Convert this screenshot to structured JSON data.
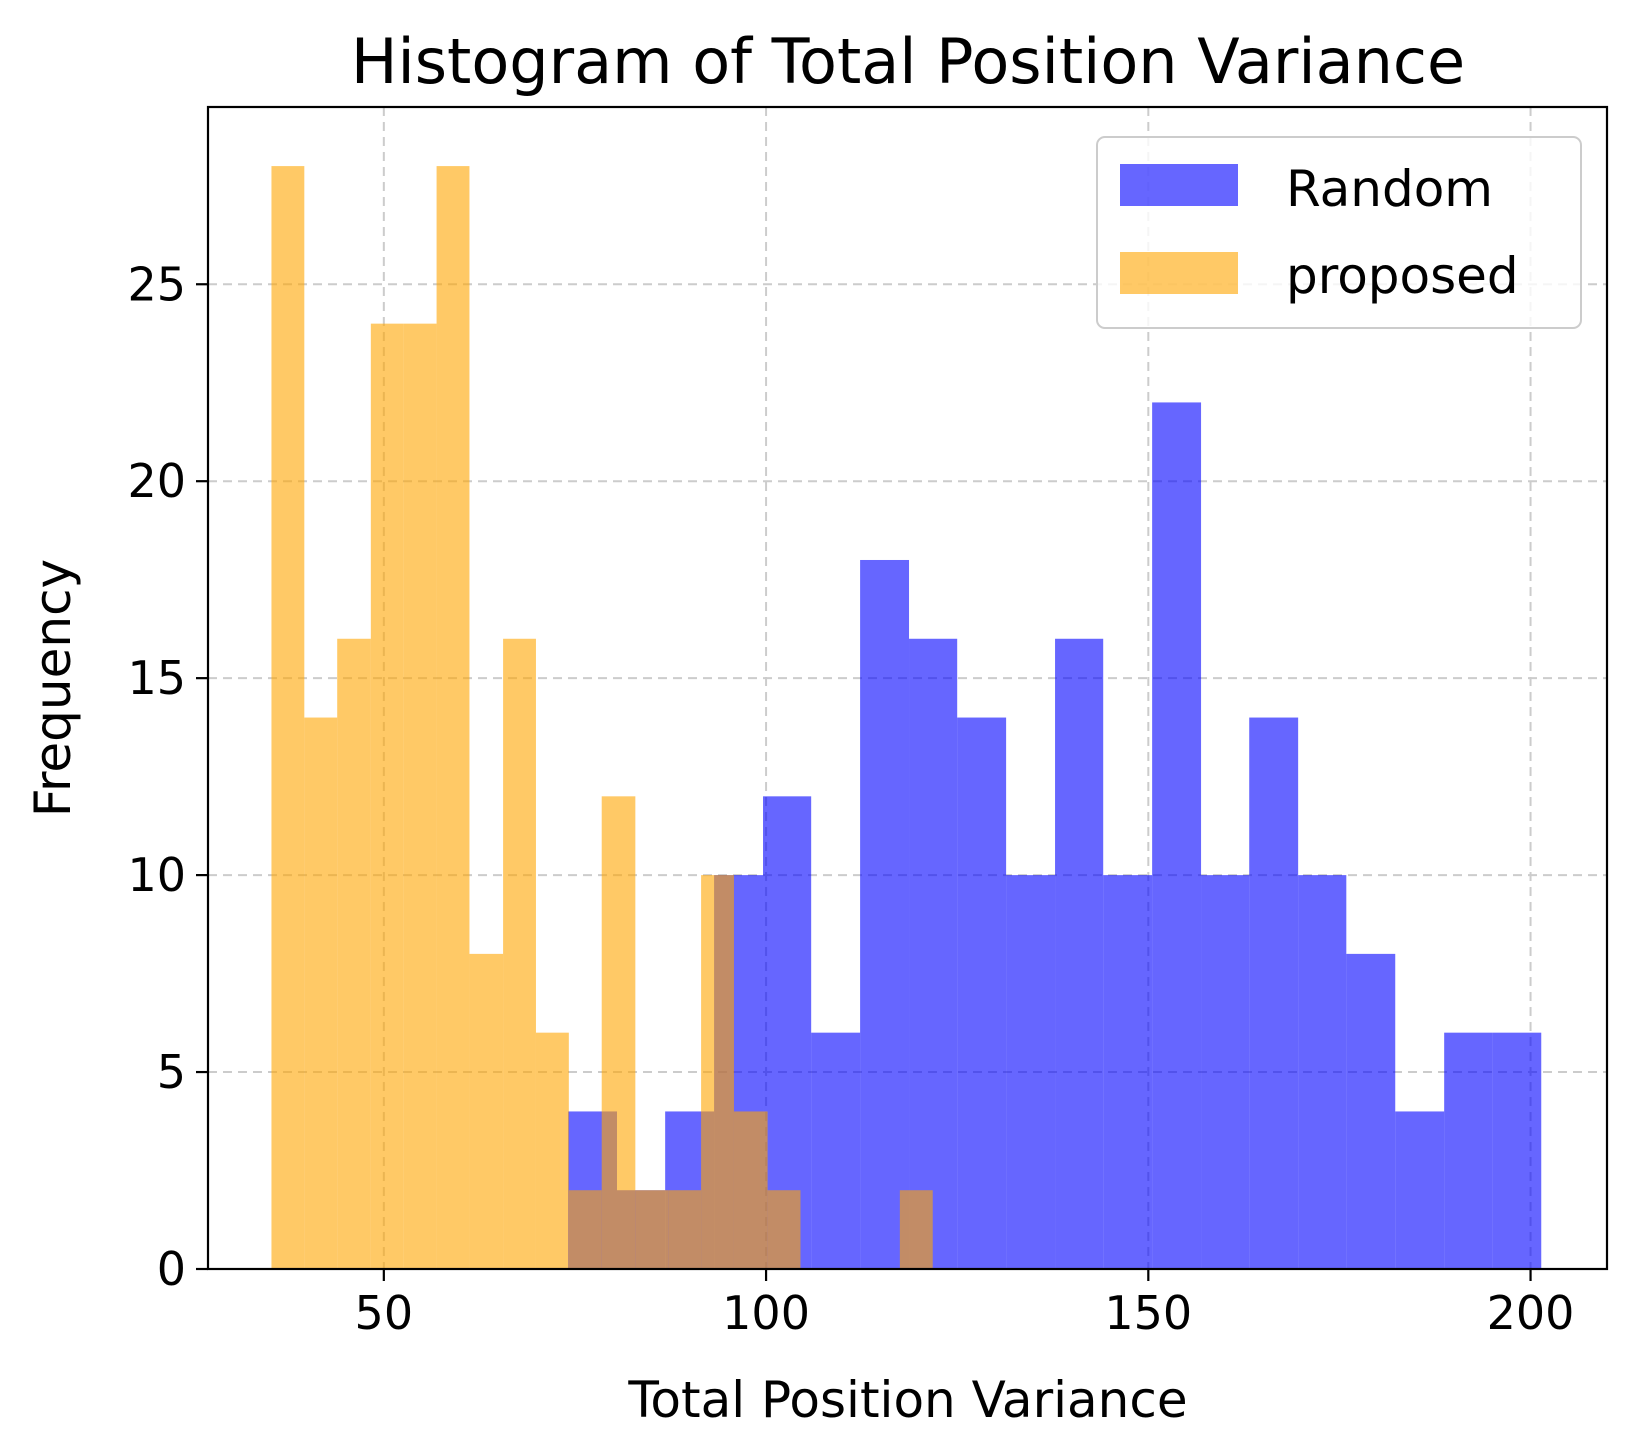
{
  "chart_data": {
    "type": "bar",
    "title": "Histogram of Total Position Variance",
    "xlabel": "Total Position Variance",
    "ylabel": "Frequency",
    "xlim": [
      27,
      210
    ],
    "ylim": [
      0,
      29.5
    ],
    "xticks": [
      50,
      100,
      150,
      200
    ],
    "yticks": [
      0,
      5,
      10,
      15,
      20,
      25
    ],
    "grid": true,
    "legend_position": "top-right",
    "series": [
      {
        "name": "Random",
        "color": "#0000ff",
        "opacity": 0.6,
        "bins": [
          {
            "x0": 74.1,
            "x1": 80.5,
            "value": 4
          },
          {
            "x0": 80.5,
            "x1": 86.8,
            "value": 2
          },
          {
            "x0": 86.8,
            "x1": 93.2,
            "value": 4
          },
          {
            "x0": 93.2,
            "x1": 99.6,
            "value": 10
          },
          {
            "x0": 99.6,
            "x1": 105.9,
            "value": 12
          },
          {
            "x0": 105.9,
            "x1": 112.3,
            "value": 6
          },
          {
            "x0": 112.3,
            "x1": 118.7,
            "value": 18
          },
          {
            "x0": 118.7,
            "x1": 125.0,
            "value": 16
          },
          {
            "x0": 125.0,
            "x1": 131.4,
            "value": 14
          },
          {
            "x0": 131.4,
            "x1": 137.8,
            "value": 10
          },
          {
            "x0": 137.8,
            "x1": 144.1,
            "value": 16
          },
          {
            "x0": 144.1,
            "x1": 150.5,
            "value": 10
          },
          {
            "x0": 150.5,
            "x1": 156.9,
            "value": 22
          },
          {
            "x0": 156.9,
            "x1": 163.2,
            "value": 10
          },
          {
            "x0": 163.2,
            "x1": 169.6,
            "value": 14
          },
          {
            "x0": 169.6,
            "x1": 175.9,
            "value": 10
          },
          {
            "x0": 175.9,
            "x1": 182.3,
            "value": 8
          },
          {
            "x0": 182.3,
            "x1": 188.7,
            "value": 4
          },
          {
            "x0": 188.7,
            "x1": 195.0,
            "value": 6
          },
          {
            "x0": 195.0,
            "x1": 201.4,
            "value": 6
          }
        ]
      },
      {
        "name": "proposed",
        "color": "#ffa500",
        "opacity": 0.6,
        "bins": [
          {
            "x0": 35.3,
            "x1": 39.6,
            "value": 28
          },
          {
            "x0": 39.6,
            "x1": 43.9,
            "value": 14
          },
          {
            "x0": 43.9,
            "x1": 48.3,
            "value": 16
          },
          {
            "x0": 48.3,
            "x1": 52.6,
            "value": 24
          },
          {
            "x0": 52.6,
            "x1": 56.9,
            "value": 24
          },
          {
            "x0": 56.9,
            "x1": 61.2,
            "value": 28
          },
          {
            "x0": 61.2,
            "x1": 65.6,
            "value": 8
          },
          {
            "x0": 65.6,
            "x1": 69.9,
            "value": 16
          },
          {
            "x0": 69.9,
            "x1": 74.2,
            "value": 6
          },
          {
            "x0": 74.2,
            "x1": 78.5,
            "value": 2
          },
          {
            "x0": 78.5,
            "x1": 82.9,
            "value": 12
          },
          {
            "x0": 82.9,
            "x1": 87.2,
            "value": 2
          },
          {
            "x0": 87.2,
            "x1": 91.5,
            "value": 2
          },
          {
            "x0": 91.5,
            "x1": 95.8,
            "value": 10
          },
          {
            "x0": 95.8,
            "x1": 100.2,
            "value": 4
          },
          {
            "x0": 100.2,
            "x1": 104.5,
            "value": 2
          },
          {
            "x0": 104.5,
            "x1": 108.8,
            "value": 0
          },
          {
            "x0": 108.8,
            "x1": 113.1,
            "value": 0
          },
          {
            "x0": 113.1,
            "x1": 117.5,
            "value": 0
          },
          {
            "x0": 117.5,
            "x1": 121.8,
            "value": 2
          }
        ]
      }
    ]
  }
}
